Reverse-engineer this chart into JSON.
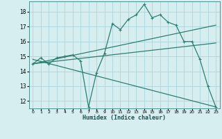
{
  "xlabel": "Humidex (Indice chaleur)",
  "bg_color": "#d6eef0",
  "grid_color": "#b0d8dc",
  "line_color": "#2e7d70",
  "xlim": [
    -0.5,
    23.5
  ],
  "ylim": [
    11.5,
    18.7
  ],
  "yticks": [
    12,
    13,
    14,
    15,
    16,
    17,
    18
  ],
  "xticks": [
    0,
    1,
    2,
    3,
    4,
    5,
    6,
    7,
    8,
    9,
    10,
    11,
    12,
    13,
    14,
    15,
    16,
    17,
    18,
    19,
    20,
    21,
    22,
    23
  ],
  "series": [
    [
      0,
      14.5
    ],
    [
      1,
      14.9
    ],
    [
      2,
      14.5
    ],
    [
      3,
      14.9
    ],
    [
      4,
      15.0
    ],
    [
      5,
      15.1
    ],
    [
      6,
      14.7
    ],
    [
      7,
      11.6
    ],
    [
      8,
      13.9
    ],
    [
      9,
      15.2
    ],
    [
      10,
      17.2
    ],
    [
      11,
      16.8
    ],
    [
      12,
      17.5
    ],
    [
      13,
      17.8
    ],
    [
      14,
      18.5
    ],
    [
      15,
      17.6
    ],
    [
      16,
      17.8
    ],
    [
      17,
      17.3
    ],
    [
      18,
      17.1
    ],
    [
      19,
      16.0
    ],
    [
      20,
      16.0
    ],
    [
      21,
      14.8
    ],
    [
      22,
      13.0
    ],
    [
      23,
      11.6
    ]
  ],
  "line2": [
    [
      0,
      14.5
    ],
    [
      23,
      17.1
    ]
  ],
  "line3": [
    [
      0,
      14.5
    ],
    [
      23,
      15.9
    ]
  ],
  "line4": [
    [
      0,
      14.8
    ],
    [
      23,
      11.6
    ]
  ]
}
